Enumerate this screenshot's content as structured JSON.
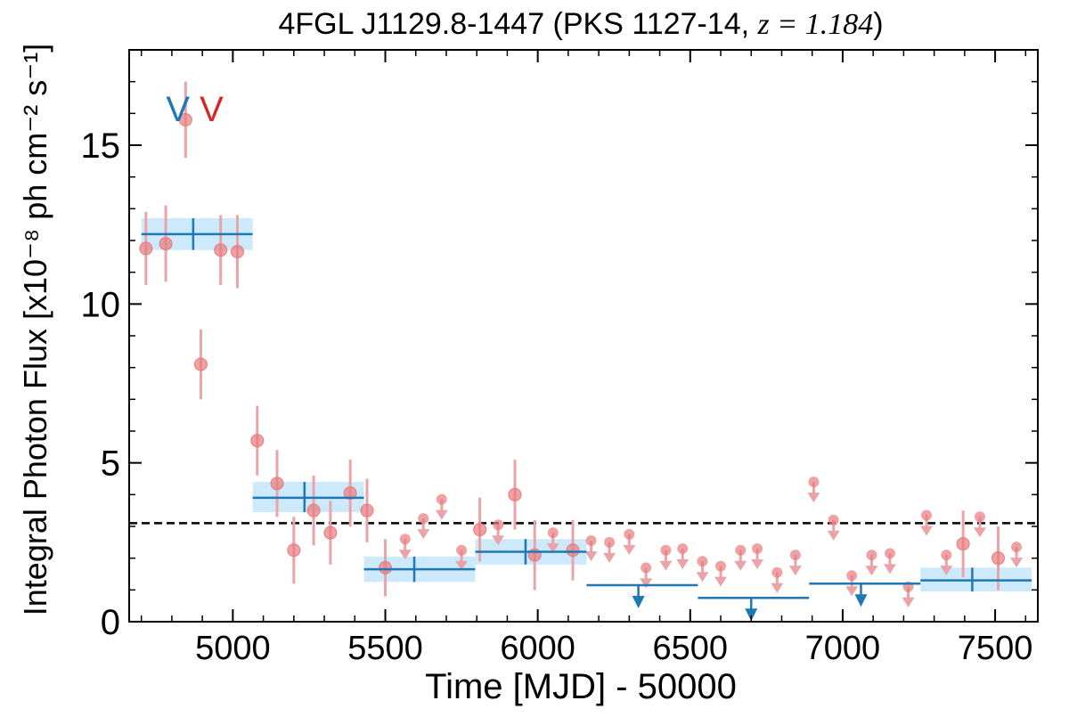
{
  "chart_data": {
    "type": "scatter",
    "title_main": "4FGL J1129.8-1447 (PKS 1127-14, ",
    "title_math": "z = 1.184",
    "title_close": ")",
    "xlabel": "Time [MJD] - 50000",
    "ylabel": "Integral Photon Flux [x10⁻⁸ ph cm⁻² s⁻¹]",
    "xlim": [
      4660,
      7640
    ],
    "ylim": [
      0,
      18
    ],
    "xticks": [
      5000,
      5500,
      6000,
      6500,
      7000,
      7500
    ],
    "yticks": [
      0,
      5,
      10,
      15
    ],
    "xtick_labels": [
      "5000",
      "5500",
      "6000",
      "6500",
      "7000",
      "7500"
    ],
    "ytick_labels": [
      "0",
      "5",
      "10",
      "15"
    ],
    "grid": false,
    "colors": {
      "annual": "#1f77b4",
      "annual_band": "#c6e8fb",
      "monthly": "#e8797d",
      "monthly_err": "#eaa4a7",
      "mean_line": "#000000",
      "marker_v_blue": "#1f77b4",
      "marker_v_red": "#d62728"
    },
    "mean_flux": 3.1,
    "markers": [
      {
        "label": "V",
        "x": 4820,
        "y": 16.2,
        "color": "blue"
      },
      {
        "label": "V",
        "x": 4930,
        "y": 16.2,
        "color": "red"
      }
    ],
    "annual_bins": [
      {
        "x0": 4700,
        "x1": 5065,
        "t": 4870,
        "y": 12.2,
        "lo": 11.7,
        "hi": 12.7,
        "ul": false
      },
      {
        "x0": 5065,
        "x1": 5430,
        "t": 5235,
        "y": 3.9,
        "lo": 3.45,
        "hi": 4.4,
        "ul": false
      },
      {
        "x0": 5430,
        "x1": 5795,
        "t": 5595,
        "y": 1.65,
        "lo": 1.25,
        "hi": 2.05,
        "ul": false
      },
      {
        "x0": 5795,
        "x1": 6160,
        "t": 5960,
        "y": 2.2,
        "lo": 1.8,
        "hi": 2.6,
        "ul": false
      },
      {
        "x0": 6160,
        "x1": 6525,
        "t": 6330,
        "y": 1.15,
        "ul": true
      },
      {
        "x0": 6525,
        "x1": 6890,
        "t": 6700,
        "y": 0.75,
        "ul": true
      },
      {
        "x0": 6890,
        "x1": 7255,
        "t": 7060,
        "y": 1.2,
        "ul": true
      },
      {
        "x0": 7255,
        "x1": 7620,
        "t": 7425,
        "y": 1.3,
        "lo": 0.95,
        "hi": 1.7,
        "ul": false
      }
    ],
    "monthly_points": [
      {
        "x": 4715,
        "y": 11.75,
        "lo": 10.6,
        "hi": 12.9
      },
      {
        "x": 4780,
        "y": 11.9,
        "lo": 10.7,
        "hi": 13.1
      },
      {
        "x": 4845,
        "y": 15.8,
        "lo": 14.6,
        "hi": 17.0
      },
      {
        "x": 4895,
        "y": 8.1,
        "lo": 7.0,
        "hi": 9.2
      },
      {
        "x": 4960,
        "y": 11.7,
        "lo": 10.6,
        "hi": 12.8
      },
      {
        "x": 5015,
        "y": 11.65,
        "lo": 10.5,
        "hi": 12.8
      },
      {
        "x": 5080,
        "y": 5.7,
        "lo": 4.6,
        "hi": 6.8
      },
      {
        "x": 5145,
        "y": 4.35,
        "lo": 3.3,
        "hi": 5.4
      },
      {
        "x": 5200,
        "y": 2.25,
        "lo": 1.2,
        "hi": 3.3
      },
      {
        "x": 5265,
        "y": 3.5,
        "lo": 2.4,
        "hi": 4.6
      },
      {
        "x": 5320,
        "y": 2.8,
        "lo": 1.8,
        "hi": 3.8
      },
      {
        "x": 5385,
        "y": 4.05,
        "lo": 3.0,
        "hi": 5.1
      },
      {
        "x": 5440,
        "y": 3.5,
        "lo": 2.5,
        "hi": 4.5
      },
      {
        "x": 5500,
        "y": 1.7,
        "lo": 0.8,
        "hi": 2.6
      },
      {
        "x": 5565,
        "y": 2.6,
        "ul": true
      },
      {
        "x": 5625,
        "y": 3.25,
        "ul": true
      },
      {
        "x": 5685,
        "y": 3.85,
        "ul": true
      },
      {
        "x": 5750,
        "y": 2.25,
        "ul": true
      },
      {
        "x": 5810,
        "y": 2.9,
        "lo": 1.9,
        "hi": 3.9
      },
      {
        "x": 5870,
        "y": 3.05,
        "ul": true
      },
      {
        "x": 5925,
        "y": 4.0,
        "lo": 2.9,
        "hi": 5.1
      },
      {
        "x": 5990,
        "y": 2.1,
        "lo": 1.0,
        "hi": 3.2
      },
      {
        "x": 6050,
        "y": 2.8,
        "ul": true
      },
      {
        "x": 6115,
        "y": 2.25,
        "lo": 1.3,
        "hi": 3.2
      },
      {
        "x": 6175,
        "y": 2.55,
        "ul": true
      },
      {
        "x": 6235,
        "y": 2.5,
        "ul": true
      },
      {
        "x": 6300,
        "y": 2.75,
        "ul": true
      },
      {
        "x": 6355,
        "y": 1.7,
        "ul": true
      },
      {
        "x": 6420,
        "y": 2.25,
        "ul": true
      },
      {
        "x": 6475,
        "y": 2.3,
        "ul": true
      },
      {
        "x": 6540,
        "y": 1.9,
        "ul": true
      },
      {
        "x": 6600,
        "y": 1.75,
        "ul": true
      },
      {
        "x": 6665,
        "y": 2.25,
        "ul": true
      },
      {
        "x": 6720,
        "y": 2.3,
        "ul": true
      },
      {
        "x": 6785,
        "y": 1.55,
        "ul": true
      },
      {
        "x": 6845,
        "y": 2.1,
        "ul": true
      },
      {
        "x": 6905,
        "y": 4.4,
        "ul": true
      },
      {
        "x": 6970,
        "y": 3.2,
        "ul": true
      },
      {
        "x": 7030,
        "y": 1.45,
        "ul": true
      },
      {
        "x": 7095,
        "y": 2.1,
        "ul": true
      },
      {
        "x": 7155,
        "y": 2.15,
        "ul": true
      },
      {
        "x": 7215,
        "y": 1.1,
        "ul": true
      },
      {
        "x": 7275,
        "y": 3.35,
        "ul": true
      },
      {
        "x": 7340,
        "y": 2.1,
        "ul": true
      },
      {
        "x": 7395,
        "y": 2.45,
        "lo": 1.4,
        "hi": 3.5
      },
      {
        "x": 7450,
        "y": 3.3,
        "ul": true
      },
      {
        "x": 7510,
        "y": 2.0,
        "lo": 1.0,
        "hi": 3.0
      },
      {
        "x": 7570,
        "y": 2.35,
        "ul": true
      }
    ]
  }
}
